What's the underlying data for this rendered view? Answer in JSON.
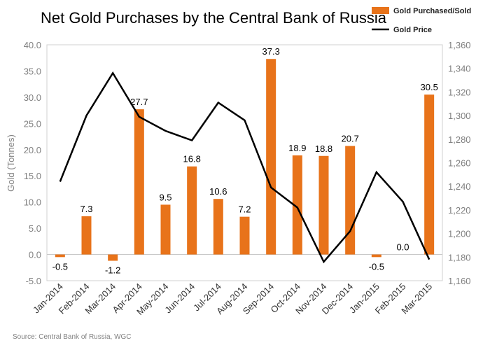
{
  "chart_data": {
    "type": "bar",
    "title": "Net Gold Purchases by the Central Bank of Russia",
    "source": "Source: Central Bank of Russia, WGC",
    "ylabel": "Gold (Tonnes)",
    "categories": [
      "Jan-2014",
      "Feb-2014",
      "Mar-2014",
      "Apr-2014",
      "May-2014",
      "Jun-2014",
      "Jul-2014",
      "Aug-2014",
      "Sep-2014",
      "Oct-2014",
      "Nov-2014",
      "Dec-2014",
      "Jan-2015",
      "Feb-2015",
      "Mar-2015"
    ],
    "ylim": [
      -5,
      40
    ],
    "yticks": [
      -5,
      0,
      5,
      10,
      15,
      20,
      25,
      30,
      35,
      40
    ],
    "ytick_labels": [
      "-5.0",
      "0.0",
      "5.0",
      "10.0",
      "15.0",
      "20.0",
      "25.0",
      "30.0",
      "35.0",
      "40.0"
    ],
    "y2lim": [
      1160,
      1360
    ],
    "y2ticks": [
      1160,
      1180,
      1200,
      1220,
      1240,
      1260,
      1280,
      1300,
      1320,
      1340,
      1360
    ],
    "y2tick_labels": [
      "1,160",
      "1,180",
      "1,200",
      "1,220",
      "1,240",
      "1,260",
      "1,280",
      "1,300",
      "1,320",
      "1,340",
      "1,360"
    ],
    "series": [
      {
        "name": "Gold Purchased/Sold",
        "kind": "bar",
        "axis": "left",
        "color": "#E8731A",
        "values": [
          -0.5,
          7.3,
          -1.2,
          27.7,
          9.5,
          16.8,
          10.6,
          7.2,
          37.3,
          18.9,
          18.8,
          20.7,
          -0.5,
          0.0,
          30.5
        ],
        "labels": [
          "-0.5",
          "7.3",
          "-1.2",
          "27.7",
          "9.5",
          "16.8",
          "10.6",
          "7.2",
          "37.3",
          "18.9",
          "18.8",
          "20.7",
          "-0.5",
          "0.0",
          "30.5"
        ]
      },
      {
        "name": "Gold Price",
        "kind": "line",
        "axis": "right",
        "color": "#000000",
        "values": [
          1244,
          1300,
          1336,
          1299,
          1287,
          1279,
          1311,
          1296,
          1239,
          1222,
          1176,
          1202,
          1252,
          1227,
          1178
        ]
      }
    ],
    "legend_position": "top-right",
    "grid": false
  }
}
